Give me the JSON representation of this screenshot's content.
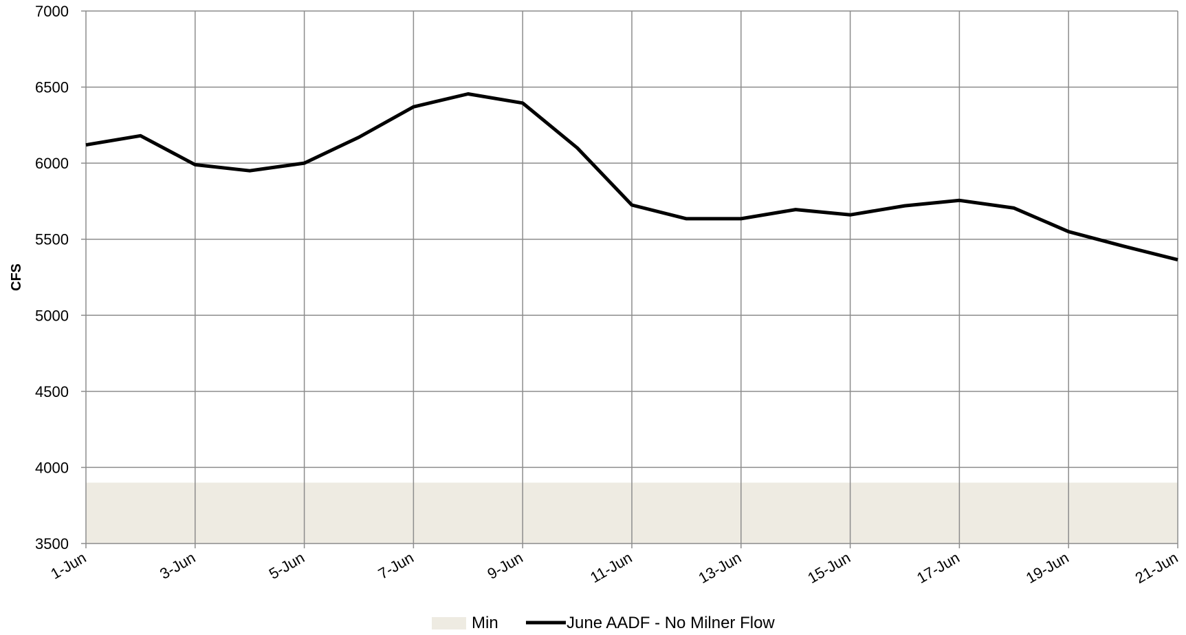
{
  "chart_data": {
    "type": "line",
    "title": "",
    "xlabel": "",
    "ylabel": "CFS",
    "ylim": [
      3500,
      7000
    ],
    "yticks": [
      3500,
      4000,
      4500,
      5000,
      5500,
      6000,
      6500,
      7000
    ],
    "x_tick_labels": [
      "1-Jun",
      "3-Jun",
      "5-Jun",
      "7-Jun",
      "9-Jun",
      "11-Jun",
      "13-Jun",
      "15-Jun",
      "17-Jun",
      "19-Jun",
      "21-Jun"
    ],
    "x": [
      "1-Jun",
      "2-Jun",
      "3-Jun",
      "4-Jun",
      "5-Jun",
      "6-Jun",
      "7-Jun",
      "8-Jun",
      "9-Jun",
      "10-Jun",
      "11-Jun",
      "12-Jun",
      "13-Jun",
      "14-Jun",
      "15-Jun",
      "16-Jun",
      "17-Jun",
      "18-Jun",
      "19-Jun",
      "20-Jun",
      "21-Jun"
    ],
    "grid": true,
    "legend_position": "bottom",
    "series": [
      {
        "name": "June AADF - No Milner Flow",
        "kind": "line",
        "color": "#000000",
        "values": [
          6120,
          6180,
          5990,
          5950,
          6000,
          6170,
          6370,
          6455,
          6395,
          6100,
          5725,
          5635,
          5635,
          5695,
          5660,
          5720,
          5755,
          5705,
          5550,
          5455,
          5365
        ]
      },
      {
        "name": "Min",
        "kind": "band",
        "color": "#EEEBE2",
        "values": [
          3900,
          3900,
          3900,
          3900,
          3900,
          3900,
          3900,
          3900,
          3900,
          3900,
          3900,
          3900,
          3900,
          3900,
          3900,
          3900,
          3900,
          3900,
          3900,
          3900,
          3900
        ]
      }
    ]
  }
}
